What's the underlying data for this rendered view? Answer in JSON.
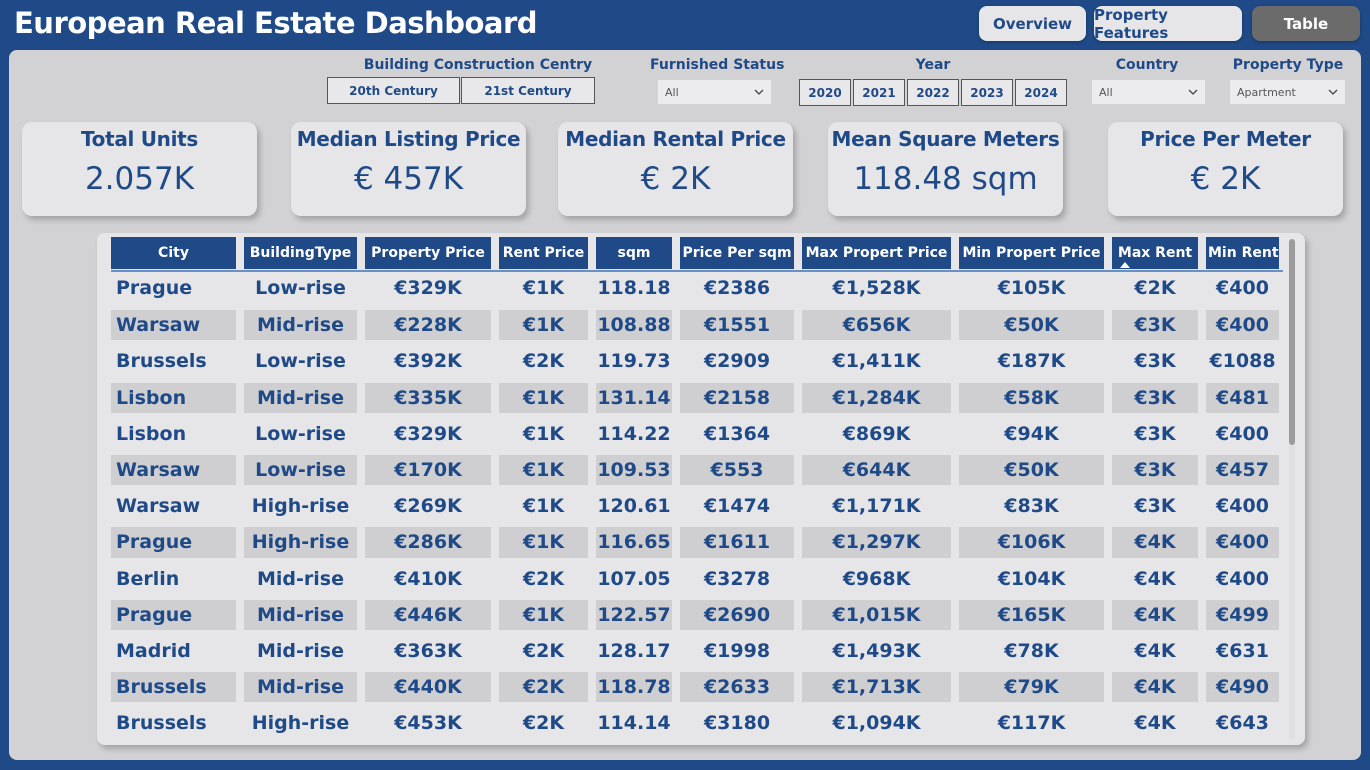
{
  "app": {
    "title": "European Real Estate Dashboard"
  },
  "nav": {
    "overview": "Overview",
    "features": "Property Features",
    "table": "Table"
  },
  "colors": {
    "brand": "#1f4a87",
    "panel": "#d2d2d4",
    "active_tab": "#6b6b6b"
  },
  "filters": {
    "century": {
      "title": "Building Construction Centry",
      "options": [
        "20th Century",
        "21st Century"
      ]
    },
    "furnished": {
      "title": "Furnished Status",
      "value": "All"
    },
    "year": {
      "title": "Year",
      "options": [
        "2020",
        "2021",
        "2022",
        "2023",
        "2024"
      ]
    },
    "country": {
      "title": "Country",
      "value": "All"
    },
    "property_type": {
      "title": "Property Type",
      "value": "Apartment"
    }
  },
  "kpis": [
    {
      "title": "Total Units",
      "value": "2.057K"
    },
    {
      "title": "Median Listing Price",
      "value": "€ 457K"
    },
    {
      "title": "Median Rental Price",
      "value": "€ 2K"
    },
    {
      "title": "Mean Square Meters",
      "value": "118.48 sqm"
    },
    {
      "title": "Price Per Meter",
      "value": "€ 2K"
    }
  ],
  "table": {
    "columns": [
      "City",
      "BuildingType",
      "Property Price",
      "Rent Price",
      "sqm",
      "Price Per sqm",
      "Max Propert Price",
      "Min Propert Price",
      "Max Rent",
      "Min Rent"
    ],
    "sorted_column": "Max Rent",
    "rows": [
      [
        "Prague",
        "Low-rise",
        "€329K",
        "€1K",
        "118.18",
        "€2386",
        "€1,528K",
        "€105K",
        "€2K",
        "€400"
      ],
      [
        "Warsaw",
        "Mid-rise",
        "€228K",
        "€1K",
        "108.88",
        "€1551",
        "€656K",
        "€50K",
        "€3K",
        "€400"
      ],
      [
        "Brussels",
        "Low-rise",
        "€392K",
        "€2K",
        "119.73",
        "€2909",
        "€1,411K",
        "€187K",
        "€3K",
        "€1088"
      ],
      [
        "Lisbon",
        "Mid-rise",
        "€335K",
        "€1K",
        "131.14",
        "€2158",
        "€1,284K",
        "€58K",
        "€3K",
        "€481"
      ],
      [
        "Lisbon",
        "Low-rise",
        "€329K",
        "€1K",
        "114.22",
        "€1364",
        "€869K",
        "€94K",
        "€3K",
        "€400"
      ],
      [
        "Warsaw",
        "Low-rise",
        "€170K",
        "€1K",
        "109.53",
        "€553",
        "€644K",
        "€50K",
        "€3K",
        "€457"
      ],
      [
        "Warsaw",
        "High-rise",
        "€269K",
        "€1K",
        "120.61",
        "€1474",
        "€1,171K",
        "€83K",
        "€3K",
        "€400"
      ],
      [
        "Prague",
        "High-rise",
        "€286K",
        "€1K",
        "116.65",
        "€1611",
        "€1,297K",
        "€106K",
        "€4K",
        "€400"
      ],
      [
        "Berlin",
        "Mid-rise",
        "€410K",
        "€2K",
        "107.05",
        "€3278",
        "€968K",
        "€104K",
        "€4K",
        "€400"
      ],
      [
        "Prague",
        "Mid-rise",
        "€446K",
        "€1K",
        "122.57",
        "€2690",
        "€1,015K",
        "€165K",
        "€4K",
        "€499"
      ],
      [
        "Madrid",
        "Mid-rise",
        "€363K",
        "€2K",
        "128.17",
        "€1998",
        "€1,493K",
        "€78K",
        "€4K",
        "€631"
      ],
      [
        "Brussels",
        "Mid-rise",
        "€440K",
        "€2K",
        "118.78",
        "€2633",
        "€1,713K",
        "€79K",
        "€4K",
        "€490"
      ],
      [
        "Brussels",
        "High-rise",
        "€453K",
        "€2K",
        "114.14",
        "€3180",
        "€1,094K",
        "€117K",
        "€4K",
        "€643"
      ]
    ]
  }
}
